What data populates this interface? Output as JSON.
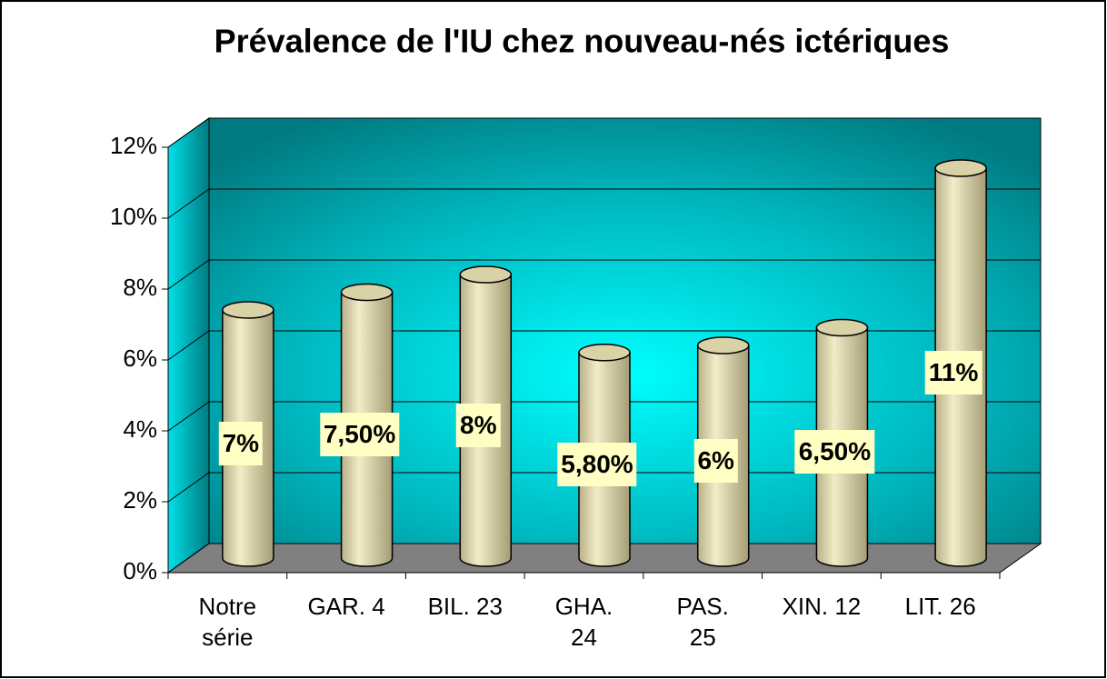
{
  "chart_data": {
    "type": "bar",
    "title": "Prévalence de l'IU chez nouveau-nés ictériques",
    "categories": [
      "Notre\nsérie",
      "GAR. 4",
      "BIL. 23",
      "GHA.\n24",
      "PAS.\n25",
      "XIN. 12",
      "LIT. 26"
    ],
    "values": [
      7,
      7.5,
      8,
      5.8,
      6,
      6.5,
      11
    ],
    "value_labels": [
      "7%",
      "7,50%",
      "8%",
      "5,80%",
      "6%",
      "6,50%",
      "11%"
    ],
    "color": "#d9d2a6",
    "ylim": [
      0,
      12
    ],
    "yticks": [
      {
        "value": 0,
        "label": "0%"
      },
      {
        "value": 2,
        "label": "2%"
      },
      {
        "value": 4,
        "label": "4%"
      },
      {
        "value": 6,
        "label": "6%"
      },
      {
        "value": 8,
        "label": "8%"
      },
      {
        "value": 10,
        "label": "10%"
      },
      {
        "value": 12,
        "label": "12%"
      }
    ],
    "grid": true
  }
}
